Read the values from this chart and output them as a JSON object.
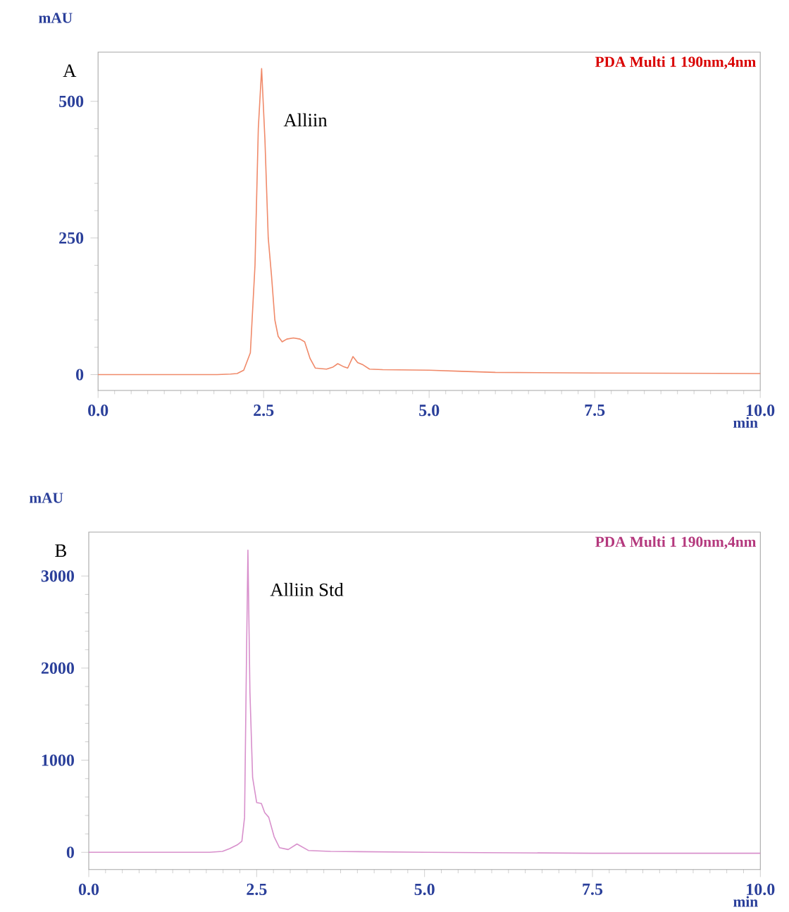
{
  "chart_data": [
    {
      "type": "line",
      "xlabel": "min",
      "ylabel": "mAU",
      "xlim": [
        0,
        10
      ],
      "ylim": [
        -29,
        590
      ],
      "xticks": [
        {
          "value": 0,
          "label": "0.0"
        },
        {
          "value": 2.5,
          "label": "2.5"
        },
        {
          "value": 5,
          "label": "5.0"
        },
        {
          "value": 7.5,
          "label": "7.5"
        },
        {
          "value": 10,
          "label": "10.0"
        }
      ],
      "yticks": [
        0,
        250,
        500
      ],
      "grid": false,
      "annotations": [
        "A",
        "PDA Multi 1 190nm,4nm",
        "Alliin"
      ],
      "series": [
        {
          "color": "#f08a6a",
          "x": [
            0,
            1,
            1.8,
            2.0,
            2.1,
            2.2,
            2.3,
            2.37,
            2.42,
            2.47,
            2.52,
            2.57,
            2.62,
            2.67,
            2.72,
            2.78,
            2.85,
            2.95,
            3.05,
            3.12,
            3.2,
            3.28,
            3.45,
            3.55,
            3.62,
            3.7,
            3.77,
            3.85,
            3.92,
            4.0,
            4.1,
            4.3,
            5.0,
            5.5,
            6.0,
            7.5,
            10
          ],
          "values": [
            0,
            0,
            0,
            1,
            2,
            8,
            40,
            200,
            450,
            560,
            430,
            250,
            180,
            100,
            70,
            60,
            65,
            67,
            65,
            60,
            30,
            12,
            10,
            14,
            20,
            15,
            12,
            33,
            22,
            18,
            10,
            9,
            8,
            6,
            4,
            3,
            2
          ]
        }
      ]
    },
    {
      "type": "line",
      "xlabel": "min",
      "ylabel": "mAU",
      "xlim": [
        0,
        10
      ],
      "ylim": [
        -187,
        3476
      ],
      "xticks": [
        {
          "value": 0,
          "label": "0.0"
        },
        {
          "value": 2.5,
          "label": "2.5"
        },
        {
          "value": 5,
          "label": "5.0"
        },
        {
          "value": 7.5,
          "label": "7.5"
        },
        {
          "value": 10,
          "label": "10.0"
        }
      ],
      "yticks": [
        0,
        1000,
        2000,
        3000
      ],
      "grid": false,
      "annotations": [
        "B",
        "PDA Multi 1 190nm,4nm",
        "Alliin Std"
      ],
      "series": [
        {
          "color": "#d890cc",
          "x": [
            0,
            1,
            1.8,
            1.99,
            2.1,
            2.21,
            2.28,
            2.32,
            2.35,
            2.37,
            2.4,
            2.44,
            2.5,
            2.57,
            2.62,
            2.68,
            2.76,
            2.84,
            2.97,
            3.1,
            3.27,
            3.6,
            5,
            7.5,
            10
          ],
          "values": [
            0,
            0,
            0,
            10,
            40,
            80,
            120,
            380,
            2200,
            3280,
            1740,
            810,
            540,
            530,
            430,
            380,
            170,
            50,
            30,
            90,
            20,
            10,
            0,
            -10,
            -10
          ]
        }
      ]
    }
  ]
}
